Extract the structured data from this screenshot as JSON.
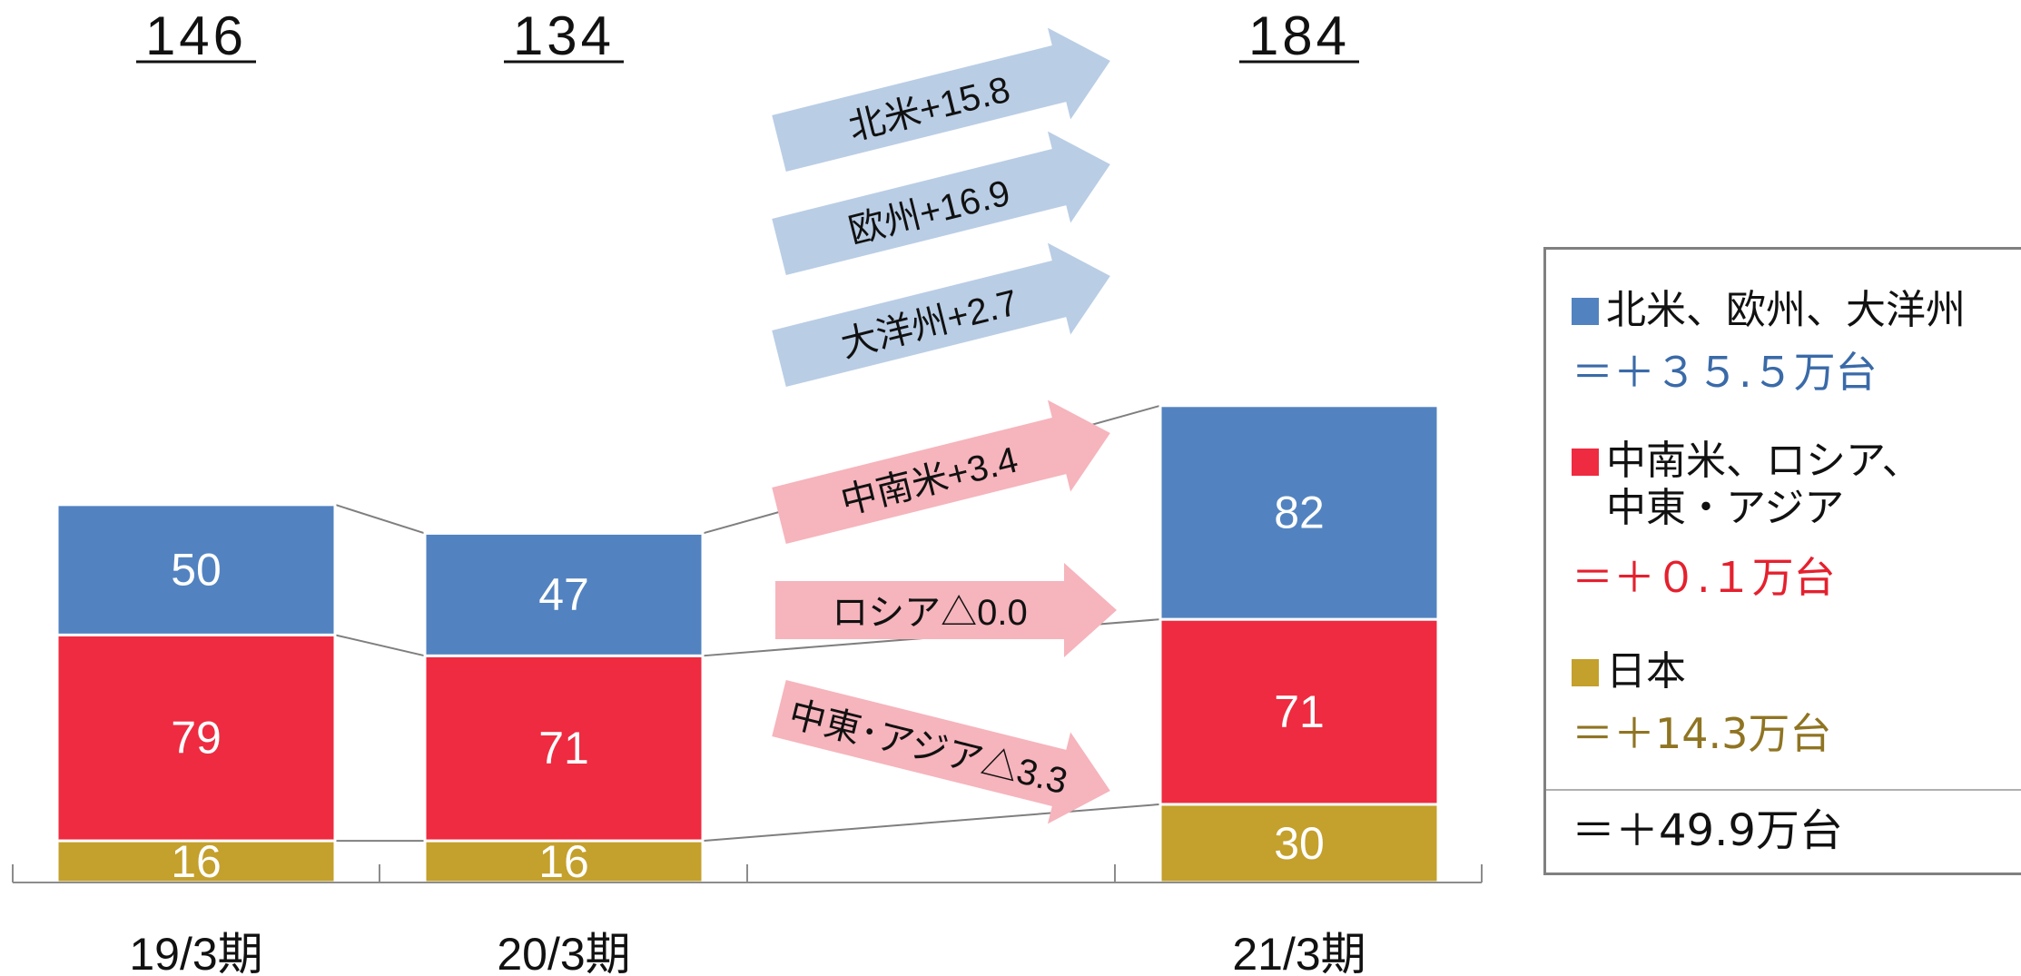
{
  "chart_data": {
    "type": "bar",
    "stacked": true,
    "categories": [
      "19/3期",
      "20/3期",
      "21/3期"
    ],
    "totals": [
      "146",
      "134",
      "184"
    ],
    "series": [
      {
        "key": "japan",
        "values": [
          16,
          16,
          30
        ],
        "color": "#C4A02C"
      },
      {
        "key": "latam",
        "values": [
          79,
          71,
          71
        ],
        "color": "#EE2B40"
      },
      {
        "key": "namerica",
        "values": [
          50,
          47,
          82
        ],
        "color": "#5283C0"
      }
    ],
    "arrows": [
      {
        "label": "北米+15.8",
        "color": "#B9CDE5"
      },
      {
        "label": "欧州+16.9",
        "color": "#B9CDE5"
      },
      {
        "label": "大洋州+2.7",
        "color": "#B9CDE5"
      },
      {
        "label": "中南米+3.4",
        "color": "#F6B4BC"
      },
      {
        "label": "ロシア△0.0",
        "color": "#F6B4BC"
      },
      {
        "label": "中東･アジア△3.3",
        "color": "#F6B4BC"
      }
    ],
    "grid": false
  },
  "legend": {
    "item1_label": "北米、欧州、大洋州",
    "item1_value": "＝＋３５.５万台",
    "item2_label_line1": "中南米、ロシア、",
    "item2_label_line2": "中東・アジア",
    "item2_value": "＝＋０.１万台",
    "item3_label": "日本",
    "item3_value": "＝＋14.3万台",
    "total": "＝＋49.9万台",
    "colors": {
      "blue": "#5283C0",
      "red": "#EE2B40",
      "gold": "#C4A02C",
      "blue_text": "#3A6AA8",
      "red_text": "#E5202E",
      "gold_text": "#8F7422"
    }
  }
}
